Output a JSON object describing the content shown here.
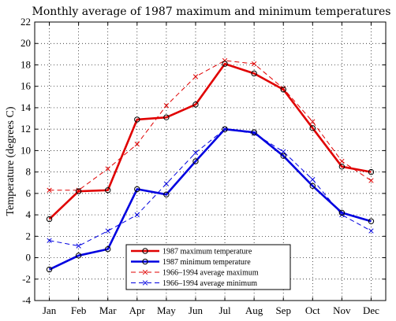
{
  "chart_data": {
    "type": "line",
    "title": "Monthly average of 1987 maximum and minimum temperatures",
    "xlabel": "",
    "ylabel": "Temperature (degrees C)",
    "ylim": [
      -4,
      22
    ],
    "yticks": [
      -4,
      -2,
      0,
      2,
      4,
      6,
      8,
      10,
      12,
      14,
      16,
      18,
      20,
      22
    ],
    "categories": [
      "Jan",
      "Feb",
      "Mar",
      "Apr",
      "May",
      "Jun",
      "Jul",
      "Aug",
      "Sep",
      "Oct",
      "Nov",
      "Dec"
    ],
    "grid": true,
    "legend_position": "bottom-center",
    "series": [
      {
        "name": "1987 maximum temperature",
        "color": "#e00000",
        "style": "solid",
        "marker": "circle",
        "width": "thick",
        "values": [
          3.6,
          6.2,
          6.3,
          12.9,
          13.1,
          14.3,
          18.1,
          17.2,
          15.7,
          12.1,
          8.5,
          8.0
        ]
      },
      {
        "name": "1987 minimum temperature",
        "color": "#0000e0",
        "style": "solid",
        "marker": "circle",
        "width": "thick",
        "values": [
          -1.1,
          0.2,
          0.8,
          6.4,
          5.9,
          9.0,
          12.0,
          11.7,
          9.5,
          6.7,
          4.2,
          3.4
        ]
      },
      {
        "name": "1966–1994 average maximum",
        "color": "#e00000",
        "style": "dashed",
        "marker": "x",
        "width": "thin",
        "values": [
          6.3,
          6.3,
          8.3,
          10.6,
          14.2,
          16.9,
          18.4,
          18.1,
          15.8,
          12.7,
          9.0,
          7.2
        ]
      },
      {
        "name": "1966–1994 average minimum",
        "color": "#0000e0",
        "style": "dashed",
        "marker": "x",
        "width": "thin",
        "values": [
          1.6,
          1.1,
          2.5,
          4.0,
          6.9,
          9.8,
          12.0,
          11.6,
          9.9,
          7.3,
          4.0,
          2.5
        ]
      }
    ]
  }
}
